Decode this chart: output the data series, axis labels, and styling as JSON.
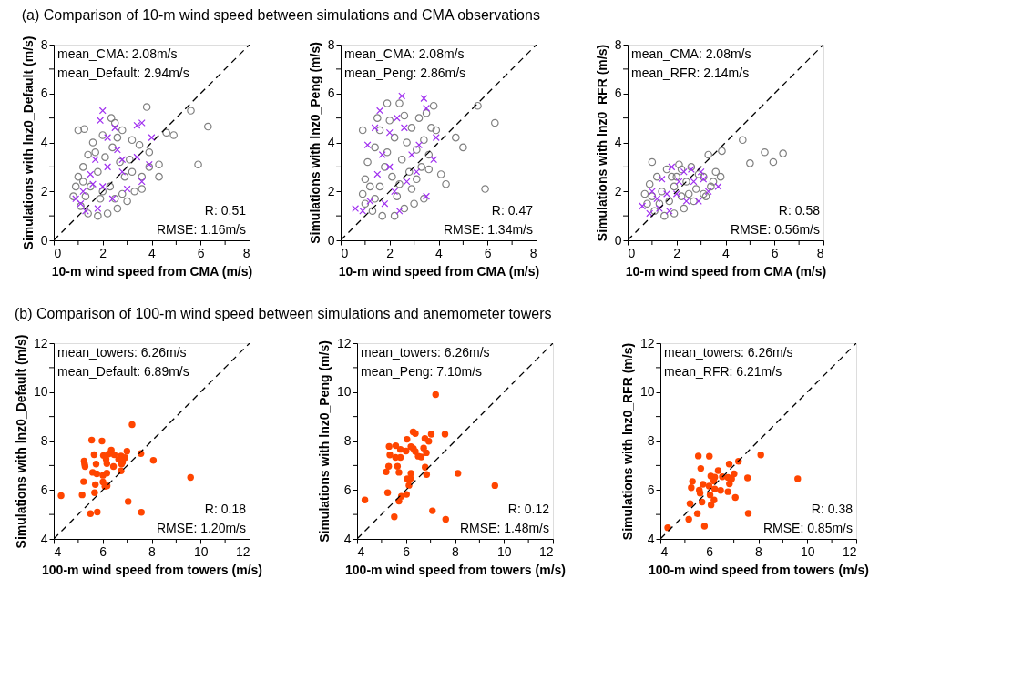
{
  "chart_data": [
    {
      "type": "scatter",
      "title": "(a) Comparison of 10-m wind speed between simulations and CMA observations",
      "xlabel": "10-m wind speed from CMA (m/s)",
      "ylabel": "Simulations with lnz0_Default (m/s)",
      "xlim": [
        0,
        8
      ],
      "ylim": [
        0,
        8
      ],
      "xticks": [
        0,
        {
          "value": 1,
          "label": null
        },
        2,
        {
          "value": 3,
          "label": null
        },
        4,
        {
          "value": 5,
          "label": null
        },
        6,
        {
          "value": 7,
          "label": null
        },
        8
      ],
      "yticks": [
        0,
        {
          "value": 1,
          "label": null
        },
        2,
        {
          "value": 3,
          "label": null
        },
        4,
        {
          "value": 5,
          "label": null
        },
        6,
        {
          "value": 7,
          "label": null
        },
        8
      ],
      "annotations": [
        "mean_CMA: 2.08m/s",
        "mean_Default: 2.94m/s",
        "R: 0.51",
        "RMSE: 1.16m/s"
      ],
      "series": [
        {
          "marker": "circle",
          "color": "#808080",
          "x": [
            1.0,
            1.25,
            2.35,
            3.8,
            5.6,
            6.3,
            5.9,
            4.6,
            4.9,
            4.3,
            4.3,
            3.6,
            3.9,
            3.5,
            3.2,
            2.8,
            2.5,
            2.0,
            1.6,
            1.4,
            1.2,
            1.0,
            0.9,
            0.8,
            1.1,
            1.4,
            1.8,
            2.2,
            2.6,
            3.0,
            3.3,
            3.6,
            3.9,
            1.5,
            1.8,
            2.1,
            2.4,
            2.7,
            2.9,
            2.3,
            1.9,
            1.3,
            2.6,
            3.1,
            1.7,
            2.0,
            2.5,
            3.2,
            1.2,
            2.8
          ],
          "values": [
            4.5,
            4.55,
            5.0,
            5.45,
            5.3,
            4.65,
            3.1,
            4.4,
            4.3,
            2.6,
            3.1,
            2.1,
            3.6,
            3.9,
            4.1,
            4.5,
            4.8,
            4.3,
            4.0,
            3.5,
            3.0,
            2.6,
            2.2,
            1.8,
            1.4,
            1.1,
            1.0,
            1.1,
            1.3,
            1.6,
            2.0,
            2.6,
            3.0,
            2.2,
            2.8,
            3.4,
            3.8,
            3.2,
            2.6,
            2.2,
            1.7,
            1.8,
            4.2,
            3.3,
            3.6,
            2.0,
            1.7,
            2.8,
            2.4,
            1.9
          ]
        },
        {
          "marker": "cross",
          "color": "#a030f0",
          "x": [
            0.9,
            1.1,
            1.3,
            1.6,
            2.0,
            1.9,
            2.2,
            2.5,
            3.4,
            3.6,
            4.0,
            3.9,
            3.6,
            3.4,
            2.8,
            2.6,
            2.2,
            1.7,
            1.5,
            2.0,
            2.4,
            1.8,
            3.0,
            1.2,
            2.8
          ],
          "values": [
            1.7,
            1.5,
            1.2,
            2.3,
            5.3,
            4.9,
            4.2,
            4.6,
            4.7,
            4.8,
            4.2,
            3.1,
            2.4,
            3.4,
            2.8,
            3.7,
            3.0,
            3.3,
            2.7,
            2.2,
            1.7,
            1.3,
            2.1,
            2.0,
            3.3
          ]
        },
        {
          "type": "line",
          "line_style": "dashed",
          "color": "#000000",
          "x": [
            0,
            8
          ],
          "values": [
            0,
            8
          ]
        }
      ]
    },
    {
      "type": "scatter",
      "xlabel": "10-m wind speed from CMA (m/s)",
      "ylabel": "Simulations with lnz0_Peng (m/s)",
      "xlim": [
        0,
        8
      ],
      "ylim": [
        0,
        8
      ],
      "xticks": [
        0,
        {
          "value": 1,
          "label": null
        },
        2,
        {
          "value": 3,
          "label": null
        },
        4,
        {
          "value": 5,
          "label": null
        },
        6,
        {
          "value": 7,
          "label": null
        },
        8
      ],
      "yticks": [
        0,
        {
          "value": 1,
          "label": null
        },
        2,
        {
          "value": 3,
          "label": null
        },
        4,
        {
          "value": 5,
          "label": null
        },
        6,
        {
          "value": 7,
          "label": null
        },
        8
      ],
      "annotations": [
        "mean_CMA: 2.08m/s",
        "mean_Peng: 2.86m/s",
        "R: 0.47",
        "RMSE: 1.34m/s"
      ],
      "series": [
        {
          "marker": "circle",
          "color": "#808080",
          "x": [
            5.6,
            6.3,
            4.7,
            5.0,
            5.9,
            4.1,
            4.3,
            3.6,
            0.9,
            1.9,
            2.4,
            3.8,
            3.5,
            3.7,
            3.9,
            3.4,
            3.6,
            3.3,
            3.1,
            3.4,
            3.0,
            2.6,
            2.2,
            1.7,
            1.3,
            1.0,
            0.9,
            1.0,
            1.1,
            1.4,
            1.6,
            1.5,
            2.0,
            2.6,
            2.9,
            2.2,
            1.9,
            2.5,
            2.8,
            2.1,
            1.6,
            1.4,
            2.3,
            1.8,
            2.7,
            3.2,
            1.2,
            2.9,
            3.1,
            2.4
          ],
          "values": [
            5.5,
            4.8,
            4.2,
            3.8,
            2.1,
            2.7,
            2.3,
            2.9,
            4.5,
            5.6,
            5.6,
            5.5,
            5.2,
            4.6,
            4.5,
            4.1,
            3.5,
            3.0,
            2.5,
            1.7,
            1.5,
            1.3,
            1.0,
            1.0,
            1.2,
            1.5,
            1.9,
            2.5,
            3.2,
            3.8,
            4.5,
            5.0,
            4.9,
            5.1,
            4.6,
            4.2,
            3.6,
            3.3,
            2.8,
            2.6,
            2.2,
            1.7,
            1.8,
            3.0,
            4.0,
            5.0,
            2.2,
            2.1,
            3.7,
            2.3
          ]
        },
        {
          "marker": "cross",
          "color": "#a030f0",
          "x": [
            0.6,
            0.9,
            1.2,
            1.1,
            1.6,
            2.5,
            3.4,
            3.5,
            3.9,
            3.8,
            3.5,
            3.1,
            2.9,
            2.6,
            2.3,
            2.0,
            1.7,
            1.5,
            2.2,
            2.7,
            1.8,
            2.4,
            3.2,
            2.0,
            1.4
          ],
          "values": [
            1.3,
            1.2,
            1.6,
            3.9,
            5.3,
            5.9,
            5.8,
            5.4,
            4.2,
            3.3,
            1.8,
            2.8,
            3.5,
            4.6,
            5.0,
            4.4,
            3.5,
            2.7,
            2.0,
            2.4,
            1.5,
            1.2,
            3.9,
            3.0,
            4.6
          ]
        },
        {
          "type": "line",
          "line_style": "dashed",
          "color": "#000000",
          "x": [
            0,
            8
          ],
          "values": [
            0,
            8
          ]
        }
      ]
    },
    {
      "type": "scatter",
      "xlabel": "10-m wind speed from CMA (m/s)",
      "ylabel": "Simulations with lnz0_RFR (m/s)",
      "xlim": [
        0,
        8
      ],
      "ylim": [
        0,
        8
      ],
      "xticks": [
        0,
        {
          "value": 1,
          "label": null
        },
        2,
        {
          "value": 3,
          "label": null
        },
        4,
        {
          "value": 5,
          "label": null
        },
        6,
        {
          "value": 7,
          "label": null
        },
        8
      ],
      "yticks": [
        0,
        {
          "value": 1,
          "label": null
        },
        2,
        {
          "value": 3,
          "label": null
        },
        4,
        {
          "value": 5,
          "label": null
        },
        6,
        {
          "value": 7,
          "label": null
        },
        8
      ],
      "annotations": [
        "mean_CMA: 2.08m/s",
        "mean_RFR: 2.14m/s",
        "R: 0.58",
        "RMSE: 0.56m/s"
      ],
      "series": [
        {
          "marker": "circle",
          "color": "#808080",
          "x": [
            4.7,
            5.6,
            6.35,
            5.0,
            5.95,
            3.85,
            3.3,
            1.0,
            3.6,
            3.8,
            3.4,
            3.5,
            3.1,
            2.7,
            2.3,
            1.9,
            1.5,
            1.1,
            0.8,
            0.7,
            0.9,
            1.2,
            1.6,
            2.1,
            2.6,
            2.9,
            2.4,
            1.9,
            1.4,
            1.7,
            2.2,
            2.8,
            3.1,
            1.3,
            2.0,
            2.5,
            3.2,
            1.0,
            2.2,
            1.8
          ],
          "values": [
            4.1,
            3.6,
            3.55,
            3.15,
            3.2,
            3.65,
            3.5,
            3.2,
            2.8,
            2.6,
            2.2,
            2.4,
            1.9,
            1.6,
            1.3,
            1.1,
            1.0,
            1.2,
            1.5,
            1.9,
            2.3,
            2.6,
            2.9,
            3.1,
            3.0,
            2.7,
            2.4,
            2.2,
            2.0,
            1.6,
            1.8,
            2.1,
            2.6,
            1.5,
            2.6,
            1.9,
            1.8,
            1.8,
            2.9,
            2.6
          ]
        },
        {
          "marker": "cross",
          "color": "#a030f0",
          "x": [
            0.6,
            0.9,
            1.3,
            1.0,
            1.4,
            1.8,
            2.3,
            2.6,
            3.0,
            3.3,
            3.7,
            2.9,
            2.4,
            2.0,
            1.6,
            1.2,
            2.1,
            2.7,
            1.7,
            3.1
          ],
          "values": [
            1.4,
            1.1,
            1.3,
            2.0,
            2.5,
            3.0,
            2.8,
            2.9,
            2.8,
            2.0,
            2.2,
            1.6,
            1.6,
            1.9,
            1.9,
            1.7,
            2.4,
            2.4,
            1.2,
            2.5
          ]
        },
        {
          "type": "line",
          "line_style": "dashed",
          "color": "#000000",
          "x": [
            0,
            8
          ],
          "values": [
            0,
            8
          ]
        }
      ]
    },
    {
      "type": "scatter",
      "title": "(b) Comparison of 100-m wind speed between simulations and anemometer towers",
      "xlabel": "100-m wind speed from towers (m/s)",
      "ylabel": "Simulations with lnz0_Default (m/s)",
      "xlim": [
        4,
        12
      ],
      "ylim": [
        4,
        12
      ],
      "xticks": [
        4,
        {
          "value": 5,
          "label": null
        },
        6,
        {
          "value": 7,
          "label": null
        },
        8,
        {
          "value": 9,
          "label": null
        },
        10,
        {
          "value": 11,
          "label": null
        },
        12
      ],
      "yticks": [
        4,
        {
          "value": 5,
          "label": null
        },
        6,
        {
          "value": 7,
          "label": null
        },
        8,
        {
          "value": 9,
          "label": null
        },
        10,
        {
          "value": 11,
          "label": null
        },
        12
      ],
      "annotations": [
        "mean_towers: 6.26m/s",
        "mean_Default: 6.89m/s",
        "R: 0.18",
        "RMSE: 1.20m/s"
      ],
      "series": [
        {
          "marker": "circle",
          "color": "#ff4500",
          "x": [
            7.2,
            5.55,
            5.97,
            6.35,
            6.99,
            7.56,
            5.65,
            6.03,
            6.24,
            6.47,
            6.75,
            6.91,
            6.14,
            6.65,
            8.07,
            5.24,
            5.26,
            5.28,
            5.73,
            6.17,
            6.44,
            6.77,
            6.81,
            5.59,
            5.76,
            6.01,
            6.17,
            6.75,
            5.22,
            5.7,
            6.01,
            6.09,
            6.18,
            9.59,
            5.67,
            4.3,
            5.16,
            7.04,
            5.5,
            5.78,
            7.58
          ],
          "values": [
            8.67,
            8.04,
            8.0,
            7.63,
            7.58,
            7.49,
            7.44,
            7.41,
            7.47,
            7.44,
            7.39,
            7.32,
            7.26,
            7.26,
            7.21,
            7.18,
            7.06,
            6.96,
            7.06,
            7.08,
            6.96,
            7.06,
            7.14,
            6.72,
            6.66,
            6.6,
            6.69,
            6.78,
            6.34,
            6.22,
            6.33,
            6.15,
            6.17,
            6.51,
            5.89,
            5.77,
            5.8,
            5.53,
            5.03,
            5.1,
            5.09
          ]
        },
        {
          "type": "line",
          "line_style": "dashed",
          "color": "#000000",
          "x": [
            4,
            12
          ],
          "values": [
            4,
            12
          ]
        }
      ]
    },
    {
      "type": "scatter",
      "xlabel": "100-m wind speed from towers (m/s)",
      "ylabel": "Simulations with lnz0_Peng (m/s)",
      "xlim": [
        4,
        12
      ],
      "ylim": [
        4,
        12
      ],
      "xticks": [
        4,
        {
          "value": 5,
          "label": null
        },
        6,
        {
          "value": 7,
          "label": null
        },
        8,
        {
          "value": 9,
          "label": null
        },
        10,
        {
          "value": 11,
          "label": null
        },
        12
      ],
      "yticks": [
        4,
        {
          "value": 5,
          "label": null
        },
        6,
        {
          "value": 7,
          "label": null
        },
        8,
        {
          "value": 9,
          "label": null
        },
        10,
        {
          "value": 11,
          "label": null
        },
        12
      ],
      "annotations": [
        "mean_towers: 6.26m/s",
        "mean_Peng: 7.10m/s",
        "R: 0.12",
        "RMSE: 1.48m/s"
      ],
      "series": [
        {
          "marker": "circle",
          "color": "#ff4500",
          "x": [
            7.21,
            6.29,
            6.38,
            7.03,
            7.59,
            6.04,
            6.77,
            6.93,
            5.31,
            5.58,
            5.77,
            6.2,
            6.3,
            6.0,
            6.38,
            6.72,
            6.83,
            5.34,
            5.57,
            5.77,
            6.5,
            6.62,
            5.29,
            5.65,
            5.19,
            5.71,
            6.78,
            6.84,
            6.2,
            6.05,
            6.19,
            8.12,
            6.12,
            6.02,
            5.81,
            5.71,
            5.25,
            4.32,
            9.63,
            7.08,
            5.52,
            7.62
          ],
          "values": [
            9.9,
            8.37,
            8.31,
            8.28,
            8.28,
            8.07,
            8.1,
            7.99,
            7.78,
            7.81,
            7.66,
            7.77,
            7.69,
            7.59,
            7.57,
            7.71,
            7.52,
            7.43,
            7.33,
            7.33,
            7.38,
            7.35,
            6.97,
            6.97,
            6.74,
            6.72,
            6.93,
            6.63,
            6.68,
            6.46,
            6.47,
            6.68,
            6.19,
            5.82,
            5.74,
            5.54,
            5.89,
            5.59,
            6.18,
            5.15,
            4.9,
            4.8
          ]
        },
        {
          "type": "line",
          "line_style": "dashed",
          "color": "#000000",
          "x": [
            4,
            12
          ],
          "values": [
            4,
            12
          ]
        }
      ]
    },
    {
      "type": "scatter",
      "xlabel": "100-m wind speed from towers (m/s)",
      "ylabel": "Simulations with lnz0_RFR (m/s)",
      "xlim": [
        4,
        12
      ],
      "ylim": [
        4,
        12
      ],
      "xticks": [
        4,
        {
          "value": 5,
          "label": null
        },
        6,
        {
          "value": 7,
          "label": null
        },
        8,
        {
          "value": 9,
          "label": null
        },
        10,
        {
          "value": 11,
          "label": null
        },
        12
      ],
      "yticks": [
        4,
        {
          "value": 5,
          "label": null
        },
        6,
        {
          "value": 7,
          "label": null
        },
        8,
        {
          "value": 9,
          "label": null
        },
        10,
        {
          "value": 11,
          "label": null
        },
        12
      ],
      "annotations": [
        "mean_towers: 6.26m/s",
        "mean_RFR: 6.21m/s",
        "R: 0.38",
        "RMSE: 0.85m/s"
      ],
      "series": [
        {
          "marker": "circle",
          "color": "#ff4500",
          "x": [
            5.55,
            6.0,
            8.1,
            5.65,
            6.81,
            7.19,
            6.36,
            6.06,
            6.22,
            6.53,
            6.76,
            7.01,
            6.91,
            7.56,
            9.61,
            5.31,
            5.26,
            5.74,
            6.18,
            6.82,
            5.99,
            5.59,
            5.62,
            6.22,
            6.46,
            6.76,
            6.03,
            5.7,
            6.19,
            6.07,
            7.06,
            5.21,
            5.51,
            7.59,
            5.16,
            5.8,
            4.3
          ],
          "values": [
            7.39,
            7.38,
            7.43,
            6.88,
            7.06,
            7.17,
            6.79,
            6.57,
            6.52,
            6.54,
            6.51,
            6.66,
            6.46,
            6.49,
            6.46,
            6.35,
            6.09,
            6.23,
            6.36,
            6.25,
            6.16,
            5.99,
            5.87,
            6.04,
            5.98,
            5.93,
            5.8,
            5.51,
            5.59,
            5.39,
            5.69,
            5.44,
            5.03,
            5.04,
            4.8,
            4.52,
            4.46
          ]
        },
        {
          "type": "line",
          "line_style": "dashed",
          "color": "#000000",
          "x": [
            4,
            12
          ],
          "values": [
            4,
            12
          ]
        }
      ]
    }
  ]
}
